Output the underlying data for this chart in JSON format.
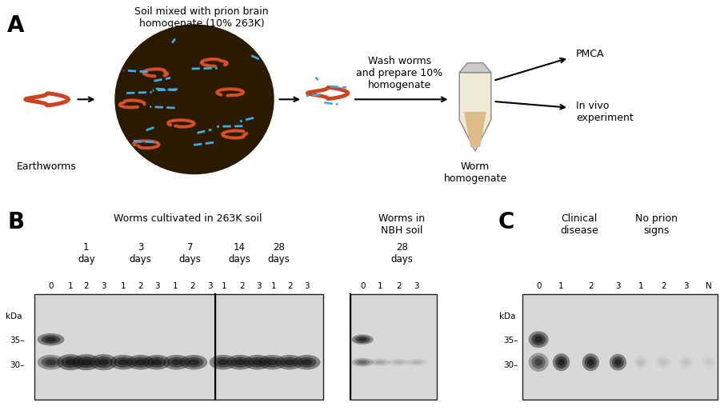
{
  "fig_width": 9.0,
  "fig_height": 5.18,
  "fig_dpi": 100,
  "background_color": "#ffffff",
  "panel_A_label": "A",
  "panel_B_label": "B",
  "panel_C_label": "C",
  "panel_A_title": "Soil mixed with prion brain\nhomogenate (10% 263K)",
  "panel_A_label1": "Earthworms",
  "panel_A_label2": "Wash worms\nand prepare 10%\nhomogenate",
  "panel_A_label3": "Worm\nhomogenate",
  "panel_A_label4": "PMCA",
  "panel_A_label5": "In vivo\nexperiment",
  "panel_B_title1": "Worms cultivated in 263K soil",
  "panel_B_title2": "Worms in\nNBH soil",
  "panel_B_time_labels": [
    "1\nday",
    "3\ndays",
    "7\ndays",
    "14\ndays",
    "28\ndays",
    "28\ndays"
  ],
  "panel_B_lane_labels": [
    "0",
    "1",
    "2",
    "3",
    "1",
    "2",
    "3",
    "1",
    "2",
    "3",
    "1",
    "2",
    "3",
    "1",
    "2",
    "3",
    "0",
    "1",
    "2",
    "3"
  ],
  "panel_B_kdaLabel": "kDa",
  "panel_B_35": "35–",
  "panel_B_30": "30–",
  "panel_C_title1": "Clinical",
  "panel_C_title2": "disease",
  "panel_C_title3": "No prion",
  "panel_C_title4": "signs",
  "panel_C_lane_labels": [
    "0",
    "1",
    "2",
    "3",
    "1",
    "2",
    "3",
    "N"
  ],
  "panel_C_kdaLabel": "kDa",
  "panel_C_35": "35–",
  "panel_C_30": "30–",
  "gel_bg_color": "#d8d8d8",
  "gel_border_color": "#222222",
  "band_dark": "#111111",
  "band_medium": "#333333",
  "band_light": "#777777"
}
